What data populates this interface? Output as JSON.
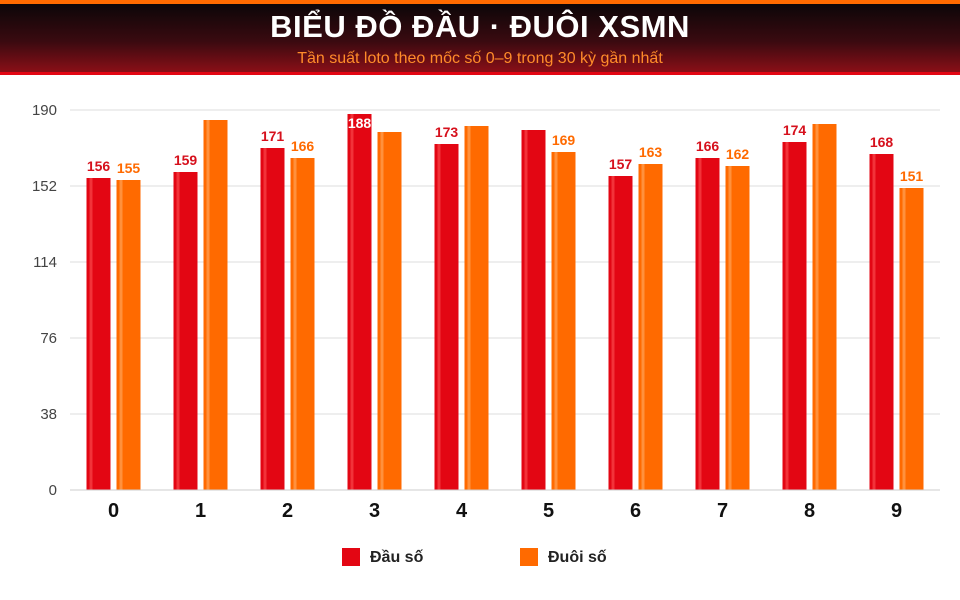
{
  "header": {
    "title": "BIỂU ĐỒ ĐẦU · ĐUÔI XSMN",
    "subtitle": "Tần suất loto theo mốc số 0–9 trong 30 kỳ gần nhất"
  },
  "colors": {
    "series1": "#e30613",
    "series2": "#ff6a00",
    "label1": "#d6101c",
    "label2": "#ff6a00",
    "grid": "#dddddd",
    "axis_text": "#444444"
  },
  "chart_data": {
    "type": "bar",
    "title": "BIỂU ĐỒ ĐẦU · ĐUÔI XSMN",
    "subtitle": "Tần suất loto theo mốc số 0–9 trong 30 kỳ gần nhất",
    "categories": [
      "0",
      "1",
      "2",
      "3",
      "4",
      "5",
      "6",
      "7",
      "8",
      "9"
    ],
    "series": [
      {
        "name": "Đầu số",
        "values": [
          156,
          159,
          171,
          188,
          173,
          180,
          157,
          166,
          174,
          168
        ],
        "labels": [
          "156",
          "159",
          "171",
          "188",
          "173",
          "",
          "157",
          "166",
          "174",
          "168"
        ]
      },
      {
        "name": "Đuôi số",
        "values": [
          155,
          185,
          166,
          179,
          182,
          169,
          163,
          162,
          183,
          151
        ],
        "labels": [
          "155",
          "",
          "166",
          "",
          "",
          "169",
          "163",
          "162",
          "",
          "151"
        ]
      }
    ],
    "yticks": [
      "0",
      "38",
      "76",
      "114",
      "152",
      "190"
    ],
    "ylim": [
      0,
      190
    ],
    "grid": true,
    "legend_position": "bottom-center"
  }
}
